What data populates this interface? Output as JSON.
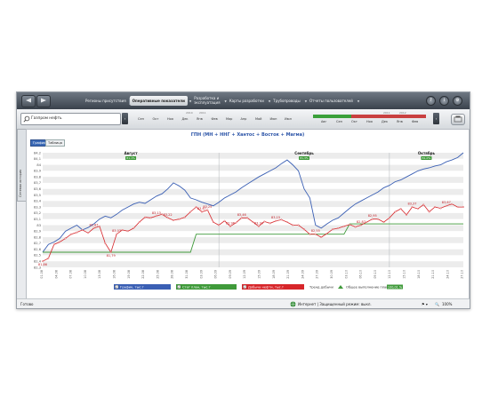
{
  "menu": {
    "items": [
      "Регионы присутствия",
      "Оперативные показатели",
      "Разработка и\nэксплуатация",
      "Карты разработки",
      "Трубопроводы",
      "Отчеты пользователей"
    ],
    "active_index": 1
  },
  "toolbar": {
    "search_value": "Газпром нефть",
    "timeline_years_left": [
      "2010",
      "2011"
    ],
    "timeline_months_left": [
      "Сен",
      "Окт",
      "Ноя",
      "Дек",
      "Янв",
      "Фев",
      "Мар",
      "Апр",
      "Май",
      "Июн",
      "Июл"
    ],
    "timeline_years_right": [
      "2011",
      "2012"
    ],
    "timeline_months_right": [
      "Авг",
      "Сен",
      "Окт",
      "Ноя",
      "Дек",
      "Янв",
      "Фев"
    ]
  },
  "sidebar_tab": "Сетевая история",
  "chart_title": "ГПН (МН + ННГ + Хантос + Восток + Магма)",
  "tabs": [
    "График",
    "Таблица"
  ],
  "status": {
    "left": "Готово",
    "center": "Интернет | Защищенный режим: выкл.",
    "zoom": "100%"
  },
  "chart_data": {
    "type": "line",
    "y_ticks": [
      "84,2",
      "84,1",
      "84",
      "83,9",
      "83,8",
      "83,7",
      "83,6",
      "83,5",
      "83,4",
      "83,3",
      "83,2",
      "83,1",
      "83",
      "82,9",
      "82,8",
      "82,7",
      "82,6",
      "82,5",
      "82,4",
      "82,3"
    ],
    "ylim": [
      82.3,
      84.2
    ],
    "x_labels": [
      "01.08",
      "04.08",
      "07.08",
      "10.08",
      "13.08",
      "16.08",
      "19.08",
      "22.08",
      "25.08",
      "28.08",
      "31.08",
      "03.09",
      "06.09",
      "09.09",
      "12.09",
      "15.09",
      "18.09",
      "21.09",
      "24.09",
      "27.09",
      "30.09",
      "03.10",
      "06.10",
      "09.10",
      "12.10",
      "15.10",
      "18.10",
      "21.10",
      "24.10",
      "27.10"
    ],
    "months": [
      {
        "name": "Август",
        "badge": "81,1%"
      },
      {
        "name": "Сентябрь",
        "badge": "81,3%"
      },
      {
        "name": "Октябрь",
        "badge": "81,0%"
      }
    ],
    "series": [
      {
        "name": "График, тыс.т",
        "color": "#3a5fb4",
        "values": [
          82.55,
          82.68,
          82.72,
          82.78,
          82.9,
          82.95,
          83.0,
          82.92,
          82.96,
          83.02,
          83.1,
          83.15,
          83.12,
          83.18,
          83.25,
          83.3,
          83.35,
          83.38,
          83.36,
          83.42,
          83.48,
          83.52,
          83.6,
          83.7,
          83.65,
          83.58,
          83.45,
          83.42,
          83.38,
          83.35,
          83.32,
          83.38,
          83.45,
          83.5,
          83.55,
          83.62,
          83.68,
          83.74,
          83.8,
          83.85,
          83.9,
          83.95,
          84.02,
          84.08,
          84.0,
          83.9,
          83.6,
          83.45,
          83.0,
          82.95,
          83.02,
          83.08,
          83.12,
          83.2,
          83.28,
          83.35,
          83.4,
          83.45,
          83.5,
          83.55,
          83.62,
          83.66,
          83.72,
          83.75,
          83.8,
          83.85,
          83.9,
          83.93,
          83.95,
          83.98,
          84.0,
          84.05,
          84.08,
          84.12,
          84.2
        ]
      },
      {
        "name": "Стат план, тыс.т",
        "color": "#3f9a3a",
        "values": [
          82.55,
          82.55,
          82.55,
          82.55,
          82.55,
          82.55,
          82.55,
          82.55,
          82.55,
          82.55,
          82.55,
          82.55,
          82.55,
          82.55,
          82.55,
          82.55,
          82.55,
          82.55,
          82.55,
          82.55,
          82.55,
          82.55,
          82.55,
          82.55,
          82.55,
          82.55,
          82.55,
          82.85,
          82.85,
          82.85,
          82.85,
          82.85,
          82.85,
          82.85,
          82.85,
          82.85,
          82.85,
          82.85,
          82.85,
          82.85,
          82.85,
          82.85,
          82.85,
          82.85,
          82.85,
          82.85,
          82.85,
          82.85,
          82.85,
          82.85,
          82.85,
          82.85,
          82.85,
          82.85,
          83.02,
          83.02,
          83.02,
          83.02,
          83.02,
          83.02,
          83.02,
          83.02,
          83.02,
          83.02,
          83.02,
          83.02,
          83.02,
          83.02,
          83.02,
          83.02,
          83.02,
          83.02,
          83.02,
          83.02,
          83.02
        ]
      },
      {
        "name": "Добыча нефти, тыс.т",
        "color": "#d7262a",
        "values": [
          82.4,
          82.45,
          82.68,
          82.72,
          82.78,
          82.85,
          82.88,
          82.92,
          82.87,
          82.95,
          82.98,
          82.7,
          82.55,
          82.85,
          82.92,
          82.9,
          82.95,
          83.05,
          83.13,
          83.12,
          83.15,
          83.18,
          83.12,
          83.08,
          83.1,
          83.13,
          83.22,
          83.3,
          83.22,
          83.25,
          83.05,
          83.0,
          83.07,
          82.98,
          83.04,
          83.12,
          83.12,
          83.05,
          82.98,
          83.06,
          83.03,
          83.07,
          83.09,
          83.05,
          83.0,
          83.0,
          82.93,
          82.85,
          82.85,
          82.8,
          82.86,
          82.93,
          82.95,
          82.98,
          83.01,
          82.97,
          83.0,
          83.05,
          83.1,
          83.1,
          83.05,
          83.12,
          83.22,
          83.27,
          83.17,
          83.3,
          83.27,
          83.34,
          83.22,
          83.3,
          83.28,
          83.32,
          83.35,
          83.3,
          83.3
        ]
      }
    ],
    "data_labels": [
      {
        "i": 0,
        "text": "81,86"
      },
      {
        "i": 9,
        "text": "82,87"
      },
      {
        "i": 12,
        "text": "81,79"
      },
      {
        "i": 13,
        "text": "83,03"
      },
      {
        "i": 20,
        "text": "83,13"
      },
      {
        "i": 22,
        "text": "83,22"
      },
      {
        "i": 28,
        "text": "83,67"
      },
      {
        "i": 29,
        "text": "83,25"
      },
      {
        "i": 33,
        "text": "82,96"
      },
      {
        "i": 35,
        "text": "83,46"
      },
      {
        "i": 38,
        "text": "83,34"
      },
      {
        "i": 41,
        "text": "83,15"
      },
      {
        "i": 48,
        "text": "82,55"
      },
      {
        "i": 56,
        "text": "82,87"
      },
      {
        "i": 58,
        "text": "82,95"
      },
      {
        "i": 65,
        "text": "83,37"
      },
      {
        "i": 71,
        "text": "83,67"
      }
    ],
    "legend": [
      {
        "label": "График, тыс.т",
        "color": "#3a5fb4"
      },
      {
        "label": "Стат план, тыс.т",
        "color": "#3f9a3a"
      },
      {
        "label": "Добыча нефти, тыс.т",
        "color": "#d7262a"
      }
    ],
    "trend_label": "Тренд добычи",
    "total_label": "Общее выполнение плана",
    "total_value": "100,01 %",
    "grid": true
  }
}
